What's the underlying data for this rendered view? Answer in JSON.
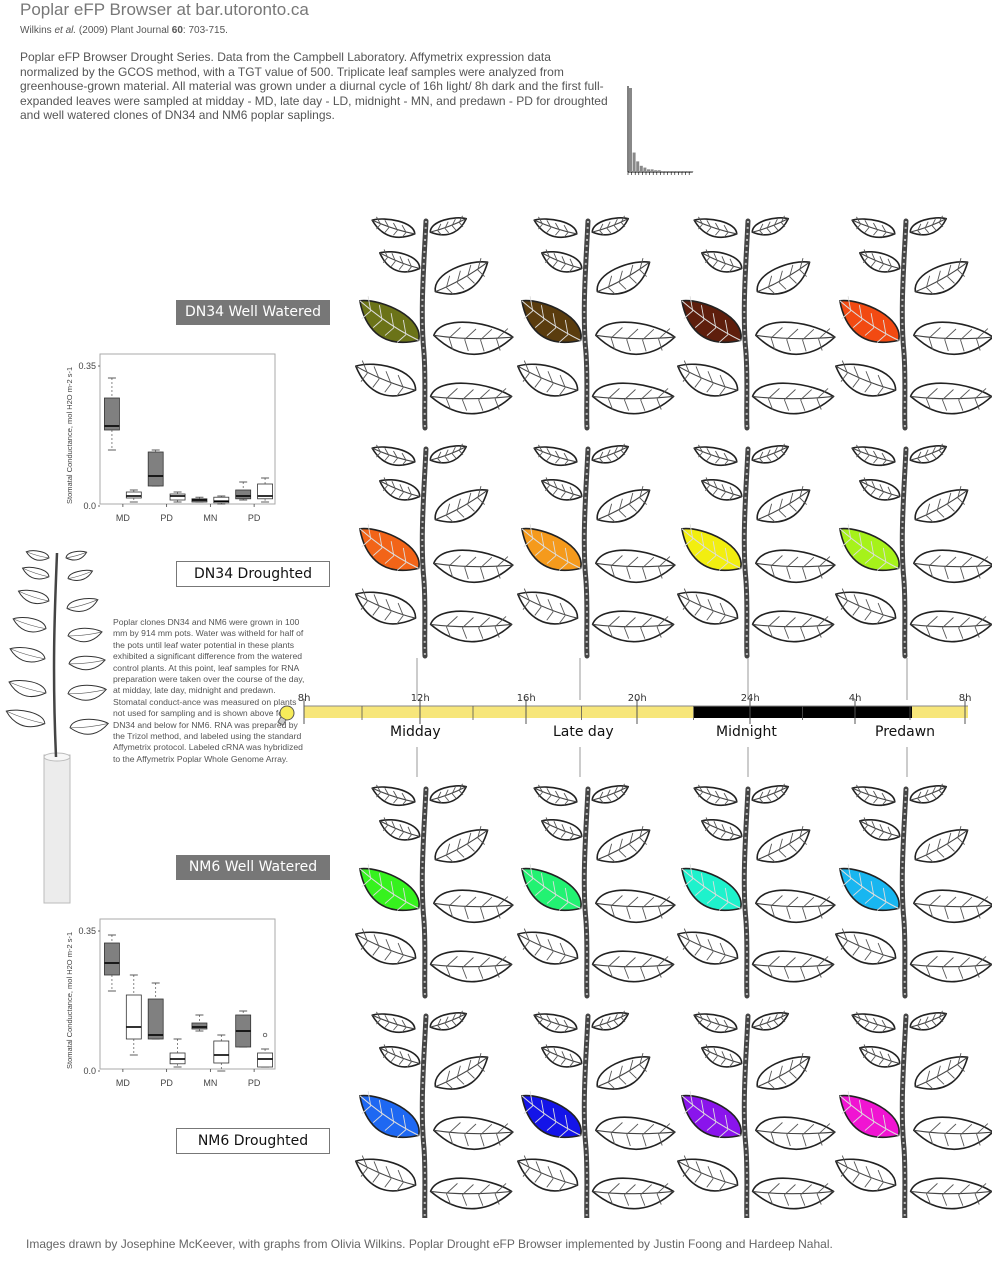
{
  "header": {
    "title": "Poplar eFP Browser at bar.utoronto.ca",
    "citation": {
      "authors": "Wilkins",
      "etal": "et al.",
      "year_journal": "(2009) Plant Journal",
      "volume": "60",
      "pages": ": 703-715."
    },
    "description": "Poplar eFP Browser Drought Series. Data from the Campbell Laboratory. Affymetrix expression data normalized by the GCOS method, with a TGT value of 500. Triplicate leaf samples were analyzed from greenhouse-grown material. All material was grown under a diurnal cycle of 16h light/ 8h dark and the first full-expanded leaves were sampled at midday - MD, late day - LD, midnight - MN, and predawn - PD for droughted and well watered clones of DN34 and NM6 poplar saplings."
  },
  "groups": [
    {
      "label": "DN34 Well Watered",
      "style": "dark",
      "colors": [
        "#6b7318",
        "#5a3c0e",
        "#5e1e0c",
        "#f24a12"
      ]
    },
    {
      "label": "DN34 Droughted",
      "style": "light",
      "colors": [
        "#f26418",
        "#f59a1c",
        "#f2ee10",
        "#a6f21a"
      ]
    },
    {
      "label": "NM6 Well Watered",
      "style": "dark",
      "colors": [
        "#36f21e",
        "#22f272",
        "#1ef2cc",
        "#18b6f0"
      ]
    },
    {
      "label": "NM6 Droughted",
      "style": "light",
      "colors": [
        "#1e68f2",
        "#1414e8",
        "#8a14ec",
        "#f014d2"
      ]
    }
  ],
  "timeline": {
    "ticks": [
      "8h",
      "12h",
      "16h",
      "20h",
      "24h",
      "4h",
      "8h"
    ],
    "periods": [
      "Midday",
      "Late day",
      "Midnight",
      "Predawn"
    ],
    "day_color": "#f7e67a",
    "night_color": "#000000"
  },
  "side_text": "Poplar clones DN34 and  NM6 were grown in 100 mm by 914 mm pots. Water was witheld for half of the pots until leaf water potential in these plants exhibited a significant difference from the watered control plants. At this point, leaf samples for RNA preparation were taken over the course of the day, at midday, late day, midnight and predawn. Stomatal conduct-ance was measured on plants not used for sampling and is shown above for DN34 and below for NM6. RNA was prepared by the Trizol method, and labeled using the standard Affymetrix protocol. Labeled cRNA was hybridized to the Affymetrix Poplar Whole Genome Array.",
  "footer": "Images drawn by Josephine McKeever, with graphs from Olivia Wilkins. Poplar Drought eFP Browser implemented by Justin Foong and Hardeep Nahal.",
  "chart_data": [
    {
      "type": "box",
      "ylabel": "Stomatal Conductance, mol H2O m-2 s-1",
      "yticks": [
        "0.0",
        "0.35"
      ],
      "ylim": [
        0,
        0.35
      ],
      "categories": [
        "MD",
        "PD",
        "MN",
        "PD"
      ],
      "boxes": [
        {
          "fill": "#808080",
          "min": 0.14,
          "q1": 0.19,
          "median": 0.2,
          "q3": 0.27,
          "max": 0.32
        },
        {
          "fill": "#ffffff",
          "min": 0.01,
          "q1": 0.02,
          "median": 0.025,
          "q3": 0.035,
          "max": 0.04
        },
        {
          "fill": "#808080",
          "min": 0.05,
          "q1": 0.05,
          "median": 0.075,
          "q3": 0.135,
          "max": 0.14
        },
        {
          "fill": "#ffffff",
          "min": 0.01,
          "q1": 0.015,
          "median": 0.025,
          "q3": 0.03,
          "max": 0.035
        },
        {
          "fill": "#808080",
          "min": 0.01,
          "q1": 0.01,
          "median": 0.015,
          "q3": 0.018,
          "max": 0.022
        },
        {
          "fill": "#ffffff",
          "min": 0.005,
          "q1": 0.008,
          "median": 0.012,
          "q3": 0.022,
          "max": 0.025
        },
        {
          "fill": "#808080",
          "min": 0.015,
          "q1": 0.018,
          "median": 0.025,
          "q3": 0.04,
          "max": 0.06
        },
        {
          "fill": "#ffffff",
          "min": 0.01,
          "q1": 0.018,
          "median": 0.025,
          "q3": 0.055,
          "max": 0.07
        }
      ]
    },
    {
      "type": "box",
      "ylabel": "Stomatal Conductance, mol H2O m-2 s-1",
      "yticks": [
        "0.0",
        "0.35"
      ],
      "ylim": [
        0,
        0.35
      ],
      "categories": [
        "MD",
        "PD",
        "MN",
        "PD"
      ],
      "boxes": [
        {
          "fill": "#808080",
          "min": 0.2,
          "q1": 0.24,
          "median": 0.27,
          "q3": 0.32,
          "max": 0.34
        },
        {
          "fill": "#ffffff",
          "min": 0.04,
          "q1": 0.08,
          "median": 0.11,
          "q3": 0.19,
          "max": 0.24
        },
        {
          "fill": "#808080",
          "min": 0.08,
          "q1": 0.08,
          "median": 0.09,
          "q3": 0.18,
          "max": 0.22
        },
        {
          "fill": "#ffffff",
          "min": 0.01,
          "q1": 0.018,
          "median": 0.03,
          "q3": 0.045,
          "max": 0.08
        },
        {
          "fill": "#808080",
          "min": 0.1,
          "q1": 0.105,
          "median": 0.11,
          "q3": 0.12,
          "max": 0.14
        },
        {
          "fill": "#ffffff",
          "min": 0.0,
          "q1": 0.02,
          "median": 0.04,
          "q3": 0.075,
          "max": 0.09
        },
        {
          "fill": "#808080",
          "min": 0.06,
          "q1": 0.06,
          "median": 0.1,
          "q3": 0.14,
          "max": 0.15
        },
        {
          "fill": "#ffffff",
          "min": 0.01,
          "q1": 0.01,
          "median": 0.03,
          "q3": 0.045,
          "max": 0.055,
          "outlier": 0.09
        }
      ]
    }
  ],
  "histogram": {
    "type": "bar",
    "values": [
      95,
      22,
      12,
      7,
      5,
      3,
      3,
      2,
      2,
      1,
      1,
      1,
      1,
      1,
      1,
      1,
      1,
      1
    ]
  }
}
